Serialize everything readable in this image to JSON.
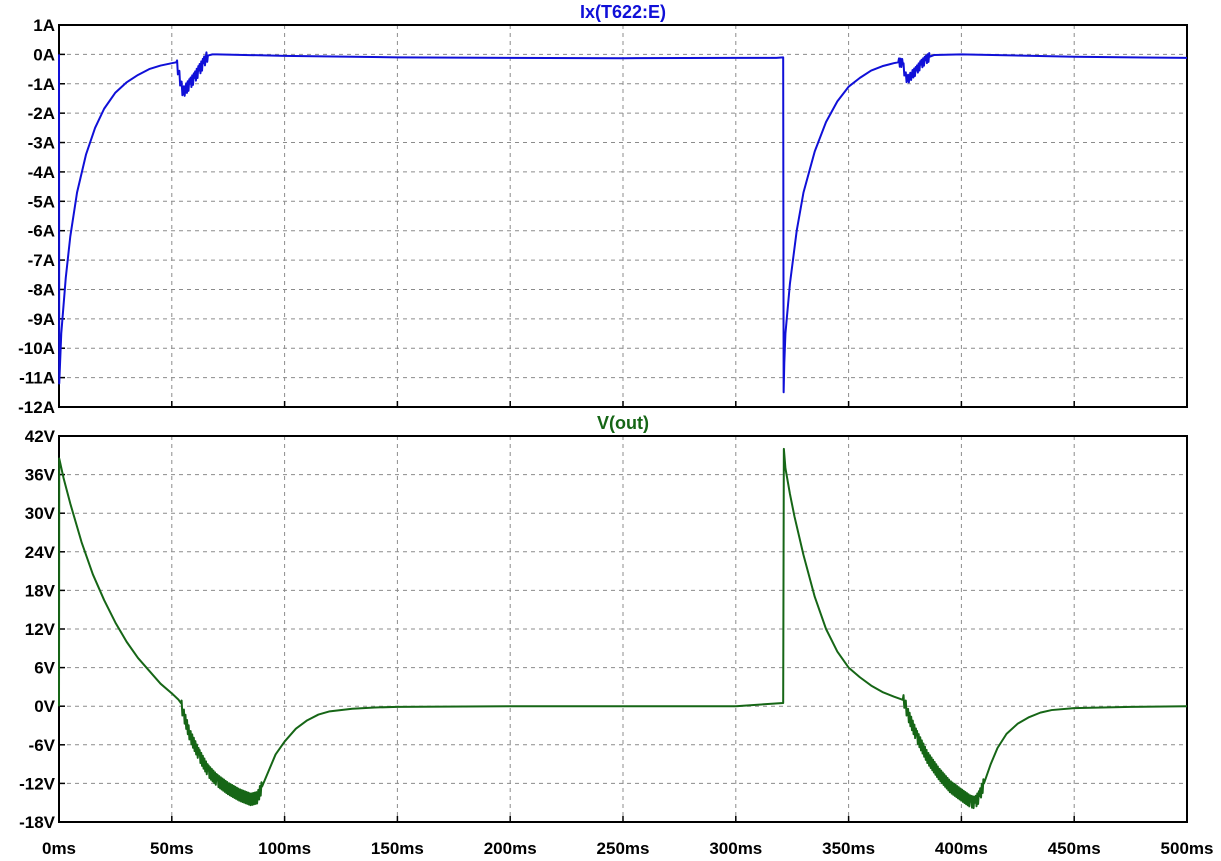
{
  "chart_data": [
    {
      "type": "line",
      "title": "Ix(T622:E)",
      "color": "#1010d8",
      "xlim": [
        0,
        500
      ],
      "ylim": [
        -12,
        1
      ],
      "x_ticks": [
        "0ms",
        "50ms",
        "100ms",
        "150ms",
        "200ms",
        "250ms",
        "300ms",
        "350ms",
        "400ms",
        "450ms",
        "500ms"
      ],
      "y_ticks": [
        "1A",
        "0A",
        "-1A",
        "-2A",
        "-3A",
        "-4A",
        "-5A",
        "-6A",
        "-7A",
        "-8A",
        "-9A",
        "-10A",
        "-11A",
        "-12A"
      ],
      "grid": true,
      "series": [
        {
          "x": [
            0,
            0.1,
            1,
            3,
            5,
            8,
            12,
            16,
            20,
            25,
            30,
            35,
            40,
            45,
            50,
            52,
            53,
            54,
            55,
            56,
            58,
            60,
            62,
            64,
            65,
            66,
            68,
            70,
            100,
            150,
            200,
            250,
            300,
            318,
            321,
            321.2,
            321.5,
            322,
            324,
            327,
            330,
            335,
            340,
            345,
            350,
            355,
            360,
            365,
            370,
            372,
            374,
            375,
            376,
            377,
            378,
            380,
            382,
            384,
            386,
            388,
            400,
            450,
            500
          ],
          "y": [
            0,
            -11.2,
            -9.5,
            -7.6,
            -6.2,
            -4.7,
            -3.4,
            -2.5,
            -1.85,
            -1.3,
            -0.95,
            -0.7,
            -0.5,
            -0.38,
            -0.3,
            -0.27,
            -0.6,
            -1.0,
            -1.3,
            -1.2,
            -1.0,
            -0.8,
            -0.55,
            -0.3,
            -0.15,
            -0.04,
            0,
            0,
            -0.05,
            -0.1,
            -0.12,
            -0.13,
            -0.12,
            -0.12,
            -0.1,
            -11.5,
            -10.5,
            -9.5,
            -7.8,
            -6.0,
            -4.7,
            -3.3,
            -2.3,
            -1.6,
            -1.1,
            -0.8,
            -0.55,
            -0.4,
            -0.3,
            -0.27,
            -0.3,
            -0.7,
            -0.85,
            -0.8,
            -0.7,
            -0.55,
            -0.35,
            -0.2,
            -0.08,
            -0.02,
            0,
            -0.08,
            -0.12
          ]
        }
      ]
    },
    {
      "type": "line",
      "title": "V(out)",
      "color": "#166616",
      "xlim": [
        0,
        500
      ],
      "ylim": [
        -18,
        42
      ],
      "x_ticks": [
        "0ms",
        "50ms",
        "100ms",
        "150ms",
        "200ms",
        "250ms",
        "300ms",
        "350ms",
        "400ms",
        "450ms",
        "500ms"
      ],
      "y_ticks": [
        "42V",
        "36V",
        "30V",
        "24V",
        "18V",
        "12V",
        "6V",
        "0V",
        "-6V",
        "-12V",
        "-18V"
      ],
      "grid": true,
      "series": [
        {
          "x": [
            0,
            0.1,
            2,
            5,
            10,
            15,
            20,
            25,
            30,
            35,
            40,
            45,
            50,
            53,
            54,
            55,
            58,
            62,
            66,
            70,
            75,
            80,
            85,
            88,
            90,
            93,
            96,
            100,
            105,
            110,
            115,
            120,
            130,
            140,
            150,
            200,
            250,
            300,
            321,
            321.3,
            322,
            324,
            326,
            330,
            335,
            340,
            345,
            350,
            355,
            360,
            365,
            370,
            374,
            375,
            376,
            380,
            385,
            390,
            395,
            400,
            404,
            406,
            408,
            410,
            413,
            416,
            420,
            425,
            430,
            435,
            440,
            450,
            475,
            500
          ],
          "y": [
            0,
            38.5,
            35.5,
            31.5,
            25.5,
            20.5,
            16.5,
            13,
            10,
            7.5,
            5.5,
            3.5,
            2,
            1,
            0.5,
            -1,
            -4.5,
            -7.5,
            -10,
            -11.5,
            -12.8,
            -13.8,
            -14.5,
            -14.2,
            -12.5,
            -10,
            -7.5,
            -5.5,
            -3.5,
            -2.2,
            -1.3,
            -0.8,
            -0.4,
            -0.2,
            -0.1,
            0,
            0,
            0,
            0.5,
            40,
            37,
            33,
            29.5,
            23.5,
            17,
            12,
            8.5,
            6,
            4.5,
            3.2,
            2.2,
            1.5,
            1,
            0.5,
            -1,
            -4.5,
            -8,
            -10.5,
            -12.5,
            -13.8,
            -14.8,
            -15,
            -14,
            -12,
            -9,
            -6.5,
            -4.3,
            -2.7,
            -1.7,
            -1,
            -0.6,
            -0.3,
            -0.1,
            0
          ]
        }
      ]
    }
  ]
}
